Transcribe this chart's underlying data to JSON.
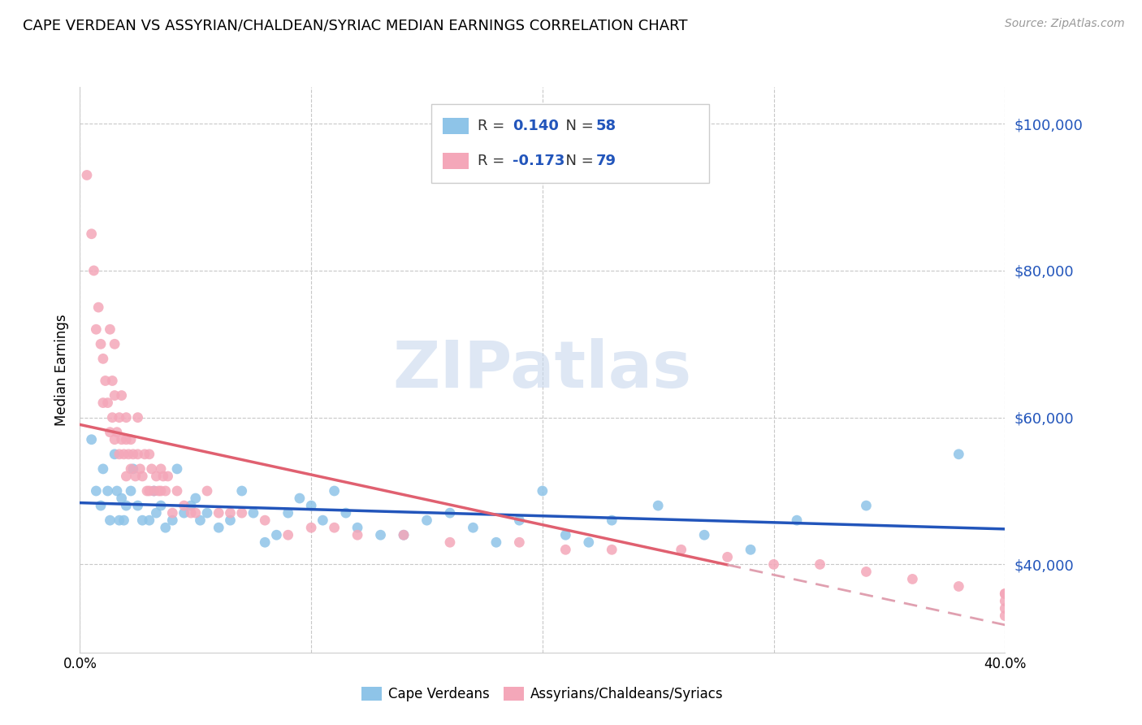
{
  "title": "CAPE VERDEAN VS ASSYRIAN/CHALDEAN/SYRIAC MEDIAN EARNINGS CORRELATION CHART",
  "source": "Source: ZipAtlas.com",
  "ylabel": "Median Earnings",
  "xlim": [
    0.0,
    0.4
  ],
  "ylim": [
    28000,
    105000
  ],
  "yticks": [
    40000,
    60000,
    80000,
    100000
  ],
  "ytick_labels": [
    "$40,000",
    "$60,000",
    "$80,000",
    "$100,000"
  ],
  "xticks": [
    0.0,
    0.1,
    0.2,
    0.3,
    0.4
  ],
  "xtick_labels": [
    "0.0%",
    "",
    "",
    "",
    "40.0%"
  ],
  "blue_color": "#8ec4e8",
  "pink_color": "#f4a7b9",
  "blue_line_color": "#2255bb",
  "pink_line_color": "#e06070",
  "pink_dash_color": "#e0a0b0",
  "text_blue_color": "#2255bb",
  "text_dark_color": "#333333",
  "R_blue": "0.140",
  "N_blue": "58",
  "R_pink": "-0.173",
  "N_pink": "79",
  "watermark": "ZIPatlas",
  "legend_label1": "Cape Verdeans",
  "legend_label2": "Assyrians/Chaldeans/Syriacs",
  "blue_scatter_x": [
    0.005,
    0.007,
    0.009,
    0.01,
    0.012,
    0.013,
    0.015,
    0.016,
    0.017,
    0.018,
    0.019,
    0.02,
    0.022,
    0.023,
    0.025,
    0.027,
    0.03,
    0.032,
    0.033,
    0.035,
    0.037,
    0.04,
    0.042,
    0.045,
    0.048,
    0.05,
    0.052,
    0.055,
    0.06,
    0.065,
    0.07,
    0.075,
    0.08,
    0.085,
    0.09,
    0.095,
    0.1,
    0.105,
    0.11,
    0.115,
    0.12,
    0.13,
    0.14,
    0.15,
    0.16,
    0.17,
    0.18,
    0.19,
    0.2,
    0.21,
    0.22,
    0.23,
    0.25,
    0.27,
    0.29,
    0.31,
    0.34,
    0.38
  ],
  "blue_scatter_y": [
    57000,
    50000,
    48000,
    53000,
    50000,
    46000,
    55000,
    50000,
    46000,
    49000,
    46000,
    48000,
    50000,
    53000,
    48000,
    46000,
    46000,
    50000,
    47000,
    48000,
    45000,
    46000,
    53000,
    47000,
    48000,
    49000,
    46000,
    47000,
    45000,
    46000,
    50000,
    47000,
    43000,
    44000,
    47000,
    49000,
    48000,
    46000,
    50000,
    47000,
    45000,
    44000,
    44000,
    46000,
    47000,
    45000,
    43000,
    46000,
    50000,
    44000,
    43000,
    46000,
    48000,
    44000,
    42000,
    46000,
    48000,
    55000
  ],
  "pink_scatter_x": [
    0.003,
    0.005,
    0.006,
    0.007,
    0.008,
    0.009,
    0.01,
    0.01,
    0.011,
    0.012,
    0.013,
    0.013,
    0.014,
    0.014,
    0.015,
    0.015,
    0.015,
    0.016,
    0.017,
    0.017,
    0.018,
    0.018,
    0.019,
    0.02,
    0.02,
    0.02,
    0.021,
    0.022,
    0.022,
    0.023,
    0.024,
    0.025,
    0.025,
    0.026,
    0.027,
    0.028,
    0.029,
    0.03,
    0.03,
    0.031,
    0.032,
    0.033,
    0.034,
    0.035,
    0.035,
    0.036,
    0.037,
    0.038,
    0.04,
    0.042,
    0.045,
    0.048,
    0.05,
    0.055,
    0.06,
    0.065,
    0.07,
    0.08,
    0.09,
    0.1,
    0.11,
    0.12,
    0.14,
    0.16,
    0.19,
    0.21,
    0.23,
    0.26,
    0.28,
    0.3,
    0.32,
    0.34,
    0.36,
    0.38,
    0.4,
    0.4,
    0.4,
    0.4,
    0.4
  ],
  "pink_scatter_y": [
    93000,
    85000,
    80000,
    72000,
    75000,
    70000,
    68000,
    62000,
    65000,
    62000,
    58000,
    72000,
    60000,
    65000,
    63000,
    57000,
    70000,
    58000,
    55000,
    60000,
    57000,
    63000,
    55000,
    60000,
    57000,
    52000,
    55000,
    57000,
    53000,
    55000,
    52000,
    55000,
    60000,
    53000,
    52000,
    55000,
    50000,
    55000,
    50000,
    53000,
    50000,
    52000,
    50000,
    50000,
    53000,
    52000,
    50000,
    52000,
    47000,
    50000,
    48000,
    47000,
    47000,
    50000,
    47000,
    47000,
    47000,
    46000,
    44000,
    45000,
    45000,
    44000,
    44000,
    43000,
    43000,
    42000,
    42000,
    42000,
    41000,
    40000,
    40000,
    39000,
    38000,
    37000,
    36000,
    36000,
    35000,
    34000,
    33000
  ]
}
